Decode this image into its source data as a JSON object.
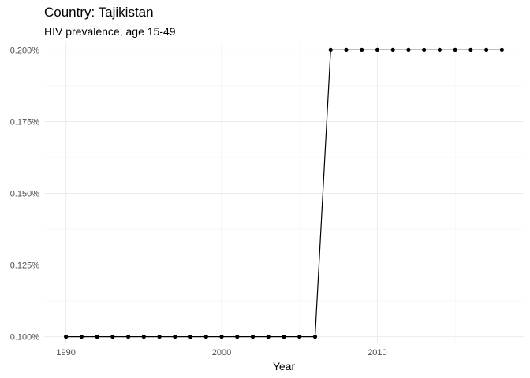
{
  "chart_data": {
    "type": "line",
    "title": "Country: Tajikistan",
    "subtitle": "HIV prevalence, age 15-49",
    "xlabel": "Year",
    "ylabel": "",
    "xlim": [
      1988.6,
      2019.4
    ],
    "ylim": [
      0.0977,
      0.2023
    ],
    "x_ticks": [
      1990,
      2000,
      2010
    ],
    "x_tick_labels": [
      "1990",
      "2000",
      "2010"
    ],
    "y_ticks": [
      0.1,
      0.125,
      0.15,
      0.175,
      0.2
    ],
    "y_tick_labels": [
      "0.100%",
      "0.125%",
      "0.150%",
      "0.175%",
      "0.200%"
    ],
    "grid": true,
    "legend": "none",
    "colors": {
      "line": "#000000",
      "point": "#000000",
      "grid_major": "#ebebeb",
      "grid_minor": "#f5f5f5"
    },
    "series": [
      {
        "x": [
          1990,
          1991,
          1992,
          1993,
          1994,
          1995,
          1996,
          1997,
          1998,
          1999,
          2000,
          2001,
          2002,
          2003,
          2004,
          2005,
          2006,
          2007,
          2008,
          2009,
          2010,
          2011,
          2012,
          2013,
          2014,
          2015,
          2016,
          2017,
          2018
        ],
        "values": [
          0.1,
          0.1,
          0.1,
          0.1,
          0.1,
          0.1,
          0.1,
          0.1,
          0.1,
          0.1,
          0.1,
          0.1,
          0.1,
          0.1,
          0.1,
          0.1,
          0.1,
          0.2,
          0.2,
          0.2,
          0.2,
          0.2,
          0.2,
          0.2,
          0.2,
          0.2,
          0.2,
          0.2,
          0.2
        ]
      }
    ]
  }
}
